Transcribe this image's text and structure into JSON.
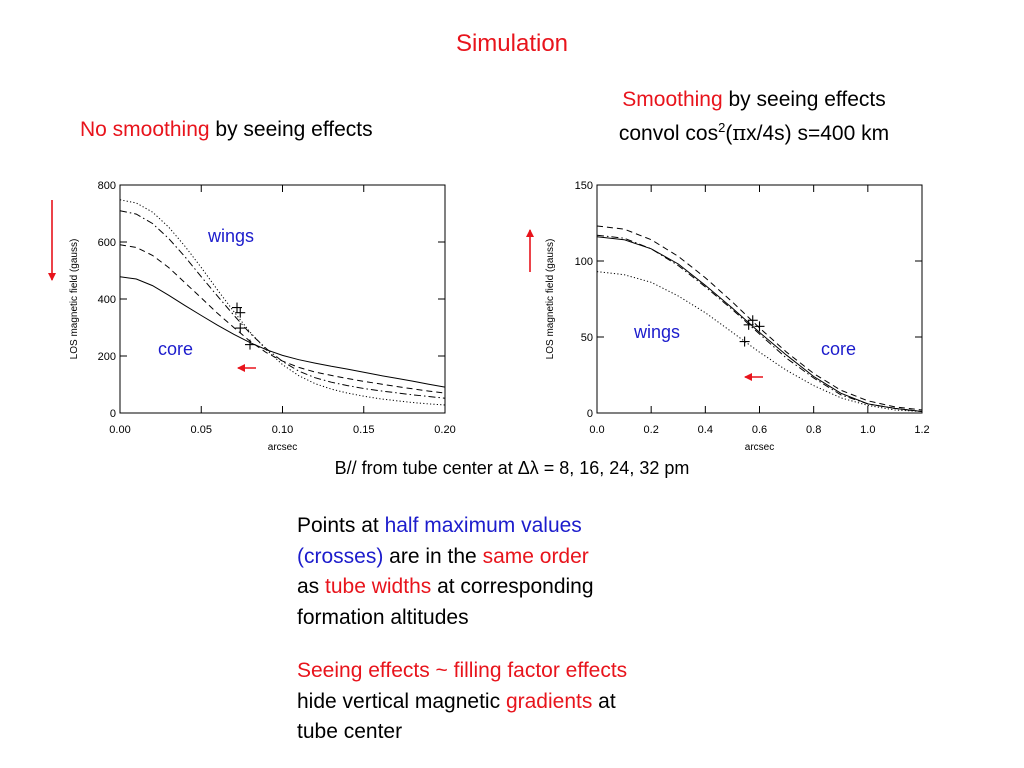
{
  "slide": {
    "title": "Simulation",
    "left_caption": {
      "highlight": "No smoothing",
      "rest": " by seeing effects"
    },
    "right_caption": {
      "line1_highlight": "Smoothing",
      "line1_rest": " by seeing effects",
      "line2_pre": "convol  cos",
      "line2_sup": "2",
      "line2_paren_open": "(",
      "line2_pi": "π",
      "line2_post": "x/4s)   s=400 km"
    },
    "bottom_caption": "B//  from tube center at Δλ = 8, 16, 24, 32 pm",
    "paragraph1": {
      "l1_a": "Points at ",
      "l1_b": "half maximum values",
      "l2_a": "(crosses)",
      "l2_b": " are in the ",
      "l2_c": "same order",
      "l3_a": "as ",
      "l3_b": "tube widths",
      "l3_c": " at corresponding",
      "l4": "formation altitudes"
    },
    "paragraph2": {
      "l1": "Seeing effects ~ filling factor effects",
      "l2_a": "hide vertical magnetic ",
      "l2_b": "gradients",
      "l2_c": " at",
      "l3": "tube center"
    },
    "colors": {
      "highlight_red": "#e8141c",
      "highlight_blue": "#1c1ccc"
    }
  },
  "chart_data": [
    {
      "type": "line",
      "xlabel": "arcsec",
      "ylabel": "LOS magnetic field (gauss)",
      "xlim": [
        0,
        0.2
      ],
      "ylim": [
        0,
        800
      ],
      "xticks": [
        "0.00",
        "0.05",
        "0.10",
        "0.15",
        "0.20"
      ],
      "yticks": [
        "0",
        "200",
        "400",
        "600",
        "800"
      ],
      "annotations": {
        "wings": "wings",
        "core": "core"
      },
      "arrows": {
        "side": "down",
        "inside": "left"
      },
      "series": [
        {
          "style": "solid",
          "x": [
            0,
            0.01,
            0.02,
            0.03,
            0.04,
            0.05,
            0.06,
            0.07,
            0.08,
            0.09,
            0.1,
            0.11,
            0.12,
            0.13,
            0.14,
            0.15,
            0.16,
            0.17,
            0.18,
            0.19,
            0.2
          ],
          "y": [
            478,
            470,
            447,
            413,
            377,
            342,
            308,
            276,
            247,
            222,
            202,
            187,
            175,
            164,
            154,
            143,
            132,
            122,
            112,
            101,
            91
          ]
        },
        {
          "style": "dashed",
          "x": [
            0,
            0.01,
            0.02,
            0.03,
            0.04,
            0.05,
            0.06,
            0.07,
            0.08,
            0.09,
            0.1,
            0.11,
            0.12,
            0.13,
            0.14,
            0.15,
            0.16,
            0.17,
            0.18,
            0.19,
            0.2
          ],
          "y": [
            590,
            581,
            553,
            510,
            457,
            404,
            350,
            300,
            252,
            212,
            182,
            160,
            144,
            132,
            121,
            111,
            102,
            93,
            85,
            77,
            70
          ]
        },
        {
          "style": "dashdot",
          "x": [
            0,
            0.01,
            0.02,
            0.03,
            0.04,
            0.05,
            0.06,
            0.07,
            0.08,
            0.09,
            0.1,
            0.11,
            0.12,
            0.13,
            0.14,
            0.15,
            0.16,
            0.17,
            0.18,
            0.19,
            0.2
          ],
          "y": [
            710,
            698,
            665,
            612,
            548,
            478,
            410,
            343,
            280,
            226,
            181,
            147,
            124,
            108,
            96,
            86,
            78,
            71,
            64,
            58,
            52
          ]
        },
        {
          "style": "dotted",
          "x": [
            0,
            0.01,
            0.02,
            0.03,
            0.04,
            0.05,
            0.06,
            0.07,
            0.08,
            0.09,
            0.1,
            0.11,
            0.12,
            0.13,
            0.14,
            0.15,
            0.16,
            0.17,
            0.18,
            0.19,
            0.2
          ],
          "y": [
            748,
            737,
            705,
            652,
            585,
            510,
            432,
            356,
            284,
            222,
            170,
            131,
            103,
            84,
            70,
            59,
            50,
            43,
            37,
            32,
            28
          ]
        }
      ],
      "half_max_points": [
        {
          "x": 0.08,
          "y": 240
        },
        {
          "x": 0.074,
          "y": 298
        },
        {
          "x": 0.074,
          "y": 352
        },
        {
          "x": 0.072,
          "y": 370
        }
      ]
    },
    {
      "type": "line",
      "xlabel": "arcsec",
      "ylabel": "LOS magnetic field (gauss)",
      "xlim": [
        0,
        1.2
      ],
      "ylim": [
        0,
        150
      ],
      "xticks": [
        "0.0",
        "0.2",
        "0.4",
        "0.6",
        "0.8",
        "1.0",
        "1.2"
      ],
      "yticks": [
        "0",
        "50",
        "100",
        "150"
      ],
      "annotations": {
        "wings": "wings",
        "core": "core"
      },
      "arrows": {
        "side": "up",
        "inside": "left"
      },
      "series": [
        {
          "style": "solid",
          "x": [
            0,
            0.1,
            0.2,
            0.3,
            0.4,
            0.5,
            0.6,
            0.7,
            0.8,
            0.9,
            1.0,
            1.1,
            1.2
          ],
          "y": [
            116,
            114,
            108,
            98,
            84,
            69,
            53,
            38,
            24,
            13,
            6,
            3,
            1
          ]
        },
        {
          "style": "dashed",
          "x": [
            0,
            0.1,
            0.2,
            0.3,
            0.4,
            0.5,
            0.6,
            0.7,
            0.8,
            0.9,
            1.0,
            1.1,
            1.2
          ],
          "y": [
            123,
            121,
            114,
            103,
            89,
            73,
            56,
            40,
            26,
            15,
            8,
            4,
            2
          ]
        },
        {
          "style": "dashdot",
          "x": [
            0,
            0.1,
            0.2,
            0.3,
            0.4,
            0.5,
            0.6,
            0.7,
            0.8,
            0.9,
            1.0,
            1.1,
            1.2
          ],
          "y": [
            117,
            115,
            108,
            97,
            83,
            68,
            52,
            36,
            23,
            12,
            6,
            3,
            1
          ]
        },
        {
          "style": "dotted",
          "x": [
            0,
            0.1,
            0.2,
            0.3,
            0.4,
            0.5,
            0.6,
            0.7,
            0.8,
            0.9,
            1.0,
            1.1,
            1.2
          ],
          "y": [
            93,
            91,
            86,
            77,
            66,
            53,
            40,
            28,
            18,
            10,
            5,
            2,
            1
          ]
        }
      ],
      "half_max_points": [
        {
          "x": 0.545,
          "y": 47
        },
        {
          "x": 0.56,
          "y": 58
        },
        {
          "x": 0.575,
          "y": 61
        },
        {
          "x": 0.6,
          "y": 57
        }
      ]
    }
  ]
}
